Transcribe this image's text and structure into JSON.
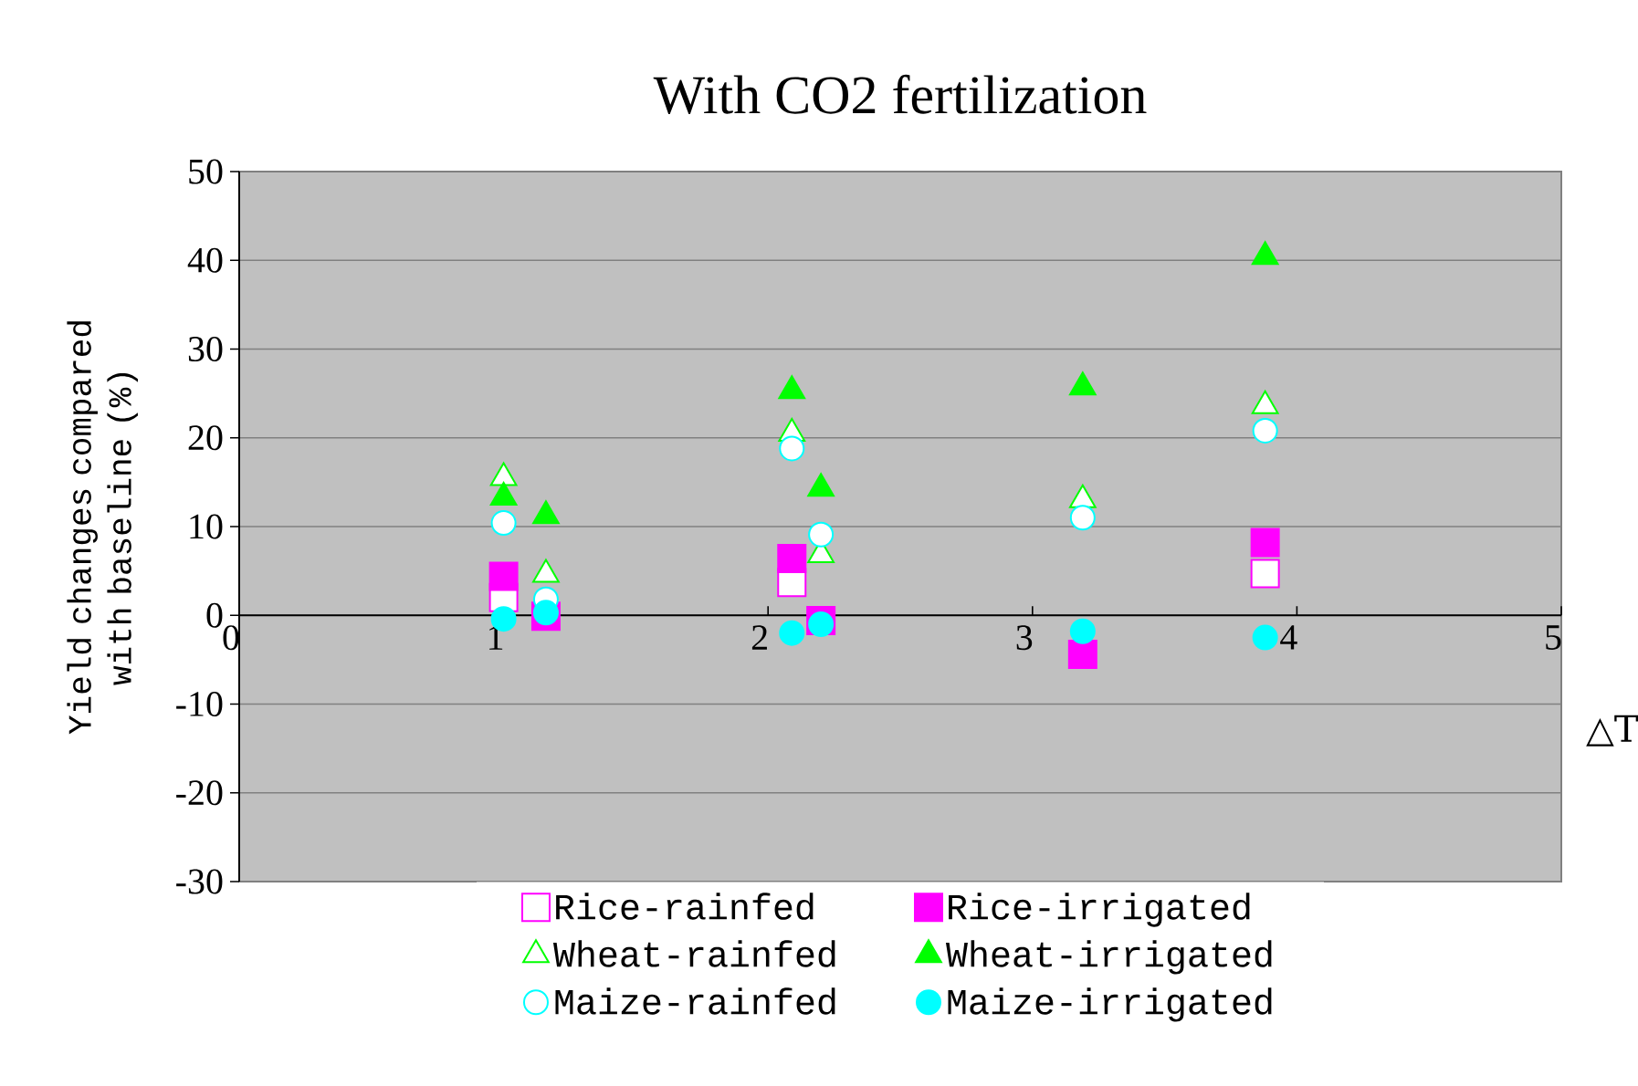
{
  "chart_data": {
    "type": "scatter",
    "title": "With CO2 fertilization",
    "xlabel": "△T",
    "ylabel": "Yield changes compared with baseline (%)",
    "xlim": [
      0,
      5
    ],
    "xticks": [
      0,
      1,
      2,
      3,
      4,
      5
    ],
    "ylim": [
      -30,
      50
    ],
    "yticks": [
      -30,
      -20,
      -10,
      0,
      10,
      20,
      30,
      40,
      50
    ],
    "grid": "y",
    "legend": "bottom",
    "series": [
      {
        "name": "Rice-rainfed",
        "color": "#ff00ff",
        "marker": "square",
        "x": [
          1.0,
          1.16,
          2.09,
          2.2,
          3.19,
          3.88
        ],
        "values": [
          2.0,
          null,
          3.7,
          null,
          null,
          4.7
        ]
      },
      {
        "name": "Rice-irrigated",
        "color": "#ff00ff",
        "marker": "square",
        "x": [
          1.0,
          1.16,
          2.09,
          2.2,
          3.19,
          3.88
        ],
        "values": [
          4.4,
          -0.1,
          6.4,
          -0.6,
          -4.4,
          8.2
        ]
      },
      {
        "name": "Wheat-rainfed",
        "color": "#00ff00",
        "marker": "triangle",
        "x": [
          1.0,
          1.16,
          2.09,
          2.2,
          3.19,
          3.88
        ],
        "values": [
          15.5,
          4.6,
          20.5,
          6.8,
          13.0,
          23.6
        ]
      },
      {
        "name": "Wheat-irrigated",
        "color": "#00ff00",
        "marker": "triangle",
        "x": [
          1.0,
          1.16,
          2.09,
          2.2,
          3.19,
          3.88
        ],
        "values": [
          13.3,
          11.2,
          25.3,
          14.3,
          25.7,
          40.4
        ]
      },
      {
        "name": "Maize-rainfed",
        "color": "#00ffff",
        "marker": "circle",
        "x": [
          1.0,
          1.16,
          2.09,
          2.2,
          3.19,
          3.88
        ],
        "values": [
          10.4,
          1.8,
          18.8,
          9.1,
          11.0,
          20.8
        ]
      },
      {
        "name": "Maize-irrigated",
        "color": "#00ffff",
        "marker": "circle",
        "x": [
          1.0,
          1.16,
          2.09,
          2.2,
          3.19,
          3.88
        ],
        "values": [
          -0.4,
          0.3,
          -2.0,
          -1.0,
          -1.8,
          -2.5
        ]
      }
    ]
  }
}
